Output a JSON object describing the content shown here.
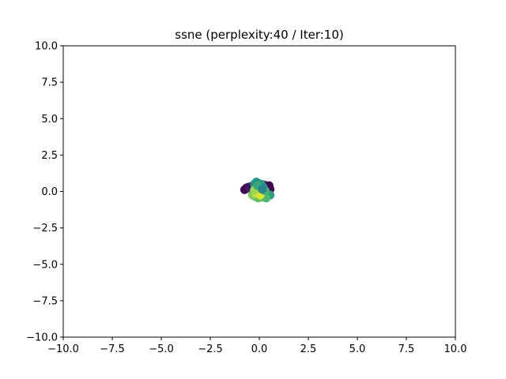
{
  "chart_data": {
    "type": "scatter",
    "title": "ssne (perplexity:40 / Iter:10)",
    "xlabel": "",
    "ylabel": "",
    "xlim": [
      -10,
      10
    ],
    "ylim": [
      -10,
      10
    ],
    "x_ticks": [
      -10,
      -7.5,
      -5,
      -2.5,
      0,
      2.5,
      5,
      7.5,
      10
    ],
    "y_ticks": [
      -10,
      -7.5,
      -5,
      -2.5,
      0,
      2.5,
      5,
      7.5,
      10
    ],
    "x_tick_labels": [
      "−10.0",
      "−7.5",
      "−5.0",
      "−2.5",
      "0.0",
      "2.5",
      "5.0",
      "7.5",
      "10.0"
    ],
    "y_tick_labels": [
      "−10.0",
      "−7.5",
      "−5.0",
      "−2.5",
      "0.0",
      "2.5",
      "5.0",
      "7.5",
      "10.0"
    ],
    "grid": false,
    "colormap": "viridis",
    "points": [
      {
        "x": -0.75,
        "y": 0.12,
        "c": 0.0
      },
      {
        "x": -0.65,
        "y": 0.25,
        "c": 0.0
      },
      {
        "x": -0.55,
        "y": 0.3,
        "c": 0.05
      },
      {
        "x": -0.45,
        "y": 0.22,
        "c": 0.1
      },
      {
        "x": -0.35,
        "y": 0.05,
        "c": 0.15
      },
      {
        "x": -0.4,
        "y": 0.35,
        "c": 0.05
      },
      {
        "x": 0.35,
        "y": 0.1,
        "c": 0.0
      },
      {
        "x": 0.45,
        "y": 0.28,
        "c": 0.0
      },
      {
        "x": 0.55,
        "y": 0.15,
        "c": 0.02
      },
      {
        "x": 0.25,
        "y": 0.45,
        "c": 0.05
      },
      {
        "x": 0.5,
        "y": 0.4,
        "c": 0.0
      },
      {
        "x": 0.1,
        "y": -0.3,
        "c": 0.12
      },
      {
        "x": 0.05,
        "y": -0.15,
        "c": 0.2
      },
      {
        "x": -0.15,
        "y": 0.65,
        "c": 0.55
      },
      {
        "x": -0.05,
        "y": 0.55,
        "c": 0.5
      },
      {
        "x": -0.25,
        "y": 0.5,
        "c": 0.5
      },
      {
        "x": 0.1,
        "y": 0.5,
        "c": 0.55
      },
      {
        "x": 0.2,
        "y": 0.3,
        "c": 0.5
      },
      {
        "x": -0.3,
        "y": -0.1,
        "c": 0.45
      },
      {
        "x": -0.1,
        "y": 0.25,
        "c": 0.4
      },
      {
        "x": 0.0,
        "y": 0.05,
        "c": 0.35
      },
      {
        "x": 0.25,
        "y": -0.1,
        "c": 0.55
      },
      {
        "x": 0.45,
        "y": -0.2,
        "c": 0.5
      },
      {
        "x": 0.55,
        "y": -0.25,
        "c": 0.55
      },
      {
        "x": -0.2,
        "y": -0.35,
        "c": 0.7
      },
      {
        "x": -0.05,
        "y": -0.45,
        "c": 0.72
      },
      {
        "x": 0.15,
        "y": -0.4,
        "c": 0.75
      },
      {
        "x": 0.35,
        "y": -0.45,
        "c": 0.68
      },
      {
        "x": -0.35,
        "y": -0.25,
        "c": 0.8
      },
      {
        "x": -0.15,
        "y": -0.15,
        "c": 0.9
      },
      {
        "x": 0.05,
        "y": -0.25,
        "c": 0.95
      },
      {
        "x": -0.25,
        "y": 0.1,
        "c": 0.85
      },
      {
        "x": 0.3,
        "y": 0.05,
        "c": 0.65
      },
      {
        "x": -0.1,
        "y": 0.4,
        "c": 0.6
      },
      {
        "x": 0.15,
        "y": 0.15,
        "c": 0.45
      }
    ]
  }
}
